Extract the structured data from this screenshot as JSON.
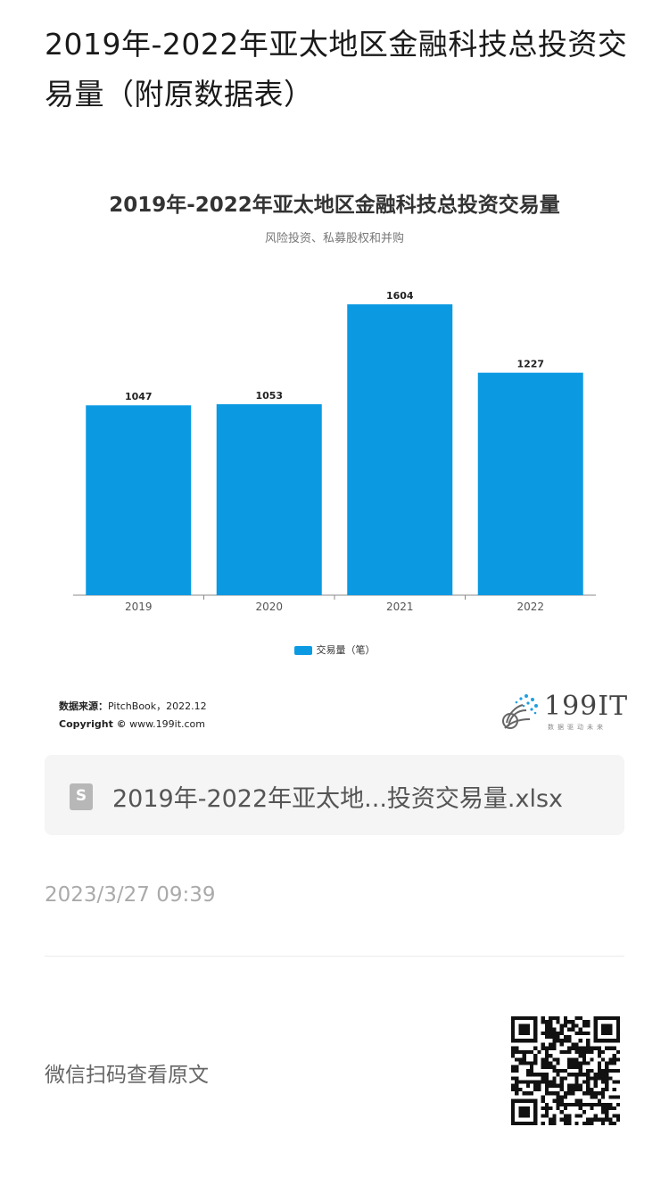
{
  "article": {
    "title": "2019年-2022年亚太地区金融科技总投资交易量（附原数据表）"
  },
  "chart_data": {
    "type": "bar",
    "title": "2019年-2022年亚太地区金融科技总投资交易量",
    "subtitle": "风险投资、私募股权和并购",
    "categories": [
      "2019",
      "2020",
      "2021",
      "2022"
    ],
    "series": [
      {
        "name": "交易量（笔）",
        "values": [
          1047,
          1053,
          1604,
          1227
        ],
        "color": "#0b9ae2"
      }
    ],
    "value_labels": [
      "1047",
      "1053",
      "1604",
      "1227"
    ],
    "ylim": [
      0,
      1800
    ],
    "grid": false,
    "legend": "bottom-center"
  },
  "source": {
    "label": "数据来源：",
    "text": "PitchBook，2022.12",
    "copyright_label": "Copyright ©",
    "copyright_text": "www.199it.com"
  },
  "logo": {
    "text": "199IT",
    "tagline": "数据驱动未来"
  },
  "attachment": {
    "filename": "2019年-2022年亚太地...投资交易量.xlsx",
    "icon": "spreadsheet-file-icon"
  },
  "meta": {
    "timestamp": "2023/3/27 09:39",
    "qr_hint": "微信扫码查看原文"
  }
}
